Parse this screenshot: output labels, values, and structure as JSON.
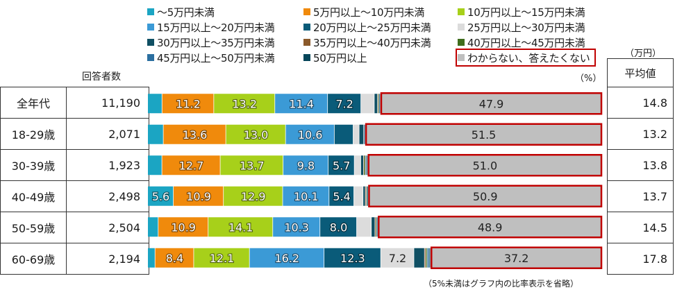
{
  "legend": [
    {
      "label": "～5万円未満",
      "color": "#1ba5c3"
    },
    {
      "label": "5万円以上～10万円未満",
      "color": "#f08a0c"
    },
    {
      "label": "10万円以上～15万円未満",
      "color": "#a7d01a"
    },
    {
      "label": "15万円以上～20万円未満",
      "color": "#3b9ad6"
    },
    {
      "label": "20万円以上～25万円未満",
      "color": "#0a5b79"
    },
    {
      "label": "25万円以上～30万円未満",
      "color": "#dcdcdc"
    },
    {
      "label": "30万円以上～35万円未満",
      "color": "#0f4f63"
    },
    {
      "label": "35万円以上～40万円未満",
      "color": "#8b5a2b"
    },
    {
      "label": "40万円以上～45万円未満",
      "color": "#3f6d1c"
    },
    {
      "label": "45万円以上～50万円未満",
      "color": "#2b6fa0"
    },
    {
      "label": "50万円以上",
      "color": "#06465a"
    },
    {
      "label": "わからない、答えたくない",
      "color": "#bfbfbf",
      "highlight": true
    }
  ],
  "headers": {
    "respondents": "回答者数",
    "percent_unit": "（%）",
    "yen_unit": "（万円）",
    "average": "平均値"
  },
  "footnote": "（5%未満はグラフ内の比率表示を省略）",
  "highlight_color": "#c00000",
  "rows": [
    {
      "label": "全年代",
      "n": "11,190",
      "avg": "14.8"
    },
    {
      "label": "18-29歳",
      "n": "2,071",
      "avg": "13.2"
    },
    {
      "label": "30-39歳",
      "n": "1,923",
      "avg": "13.8"
    },
    {
      "label": "40-49歳",
      "n": "2,498",
      "avg": "13.7"
    },
    {
      "label": "50-59歳",
      "n": "2,504",
      "avg": "14.5"
    },
    {
      "label": "60-69歳",
      "n": "2,194",
      "avg": "17.8"
    }
  ],
  "chart_data": {
    "type": "bar",
    "orientation": "horizontal",
    "stacked": true,
    "normalized_to_100": true,
    "label_threshold": 5,
    "categories": [
      "全年代",
      "18-29歳",
      "30-39歳",
      "40-49歳",
      "50-59歳",
      "60-69歳"
    ],
    "series": [
      {
        "name": "～5万円未満",
        "values": [
          3.1,
          3.4,
          3.1,
          5.6,
          2.3,
          1.6
        ]
      },
      {
        "name": "5万円以上～10万円未満",
        "values": [
          11.2,
          13.6,
          12.7,
          10.9,
          10.9,
          8.4
        ]
      },
      {
        "name": "10万円以上～15万円未満",
        "values": [
          13.2,
          13.0,
          13.7,
          12.9,
          14.1,
          12.1
        ]
      },
      {
        "name": "15万円以上～20万円未満",
        "values": [
          11.4,
          10.6,
          9.8,
          10.1,
          10.3,
          16.2
        ]
      },
      {
        "name": "20万円以上～25万円未満",
        "values": [
          7.2,
          4.1,
          5.7,
          5.4,
          8.0,
          12.3
        ]
      },
      {
        "name": "25万円以上～30万円未満",
        "values": [
          2.9,
          1.3,
          1.4,
          2.0,
          3.2,
          7.2
        ]
      },
      {
        "name": "30万円以上～35万円未満",
        "values": [
          0.7,
          1.0,
          0.6,
          0.5,
          0.8,
          2.3
        ]
      },
      {
        "name": "35万円以上～40万円未満",
        "values": [
          0.1,
          0.0,
          0.1,
          0.2,
          0.1,
          0.3
        ]
      },
      {
        "name": "40万円以上～45万円未満",
        "values": [
          0.2,
          0.0,
          0.3,
          0.1,
          0.2,
          0.3
        ]
      },
      {
        "name": "45万円以上～50万円未満",
        "values": [
          0.1,
          0.1,
          0.2,
          0.1,
          0.1,
          0.4
        ]
      },
      {
        "name": "50万円以上",
        "values": [
          0.2,
          0.2,
          0.3,
          0.2,
          0.2,
          0.3
        ]
      },
      {
        "name": "わからない、答えたくない",
        "values": [
          47.9,
          51.5,
          51.0,
          50.9,
          48.9,
          37.2
        ]
      }
    ]
  }
}
